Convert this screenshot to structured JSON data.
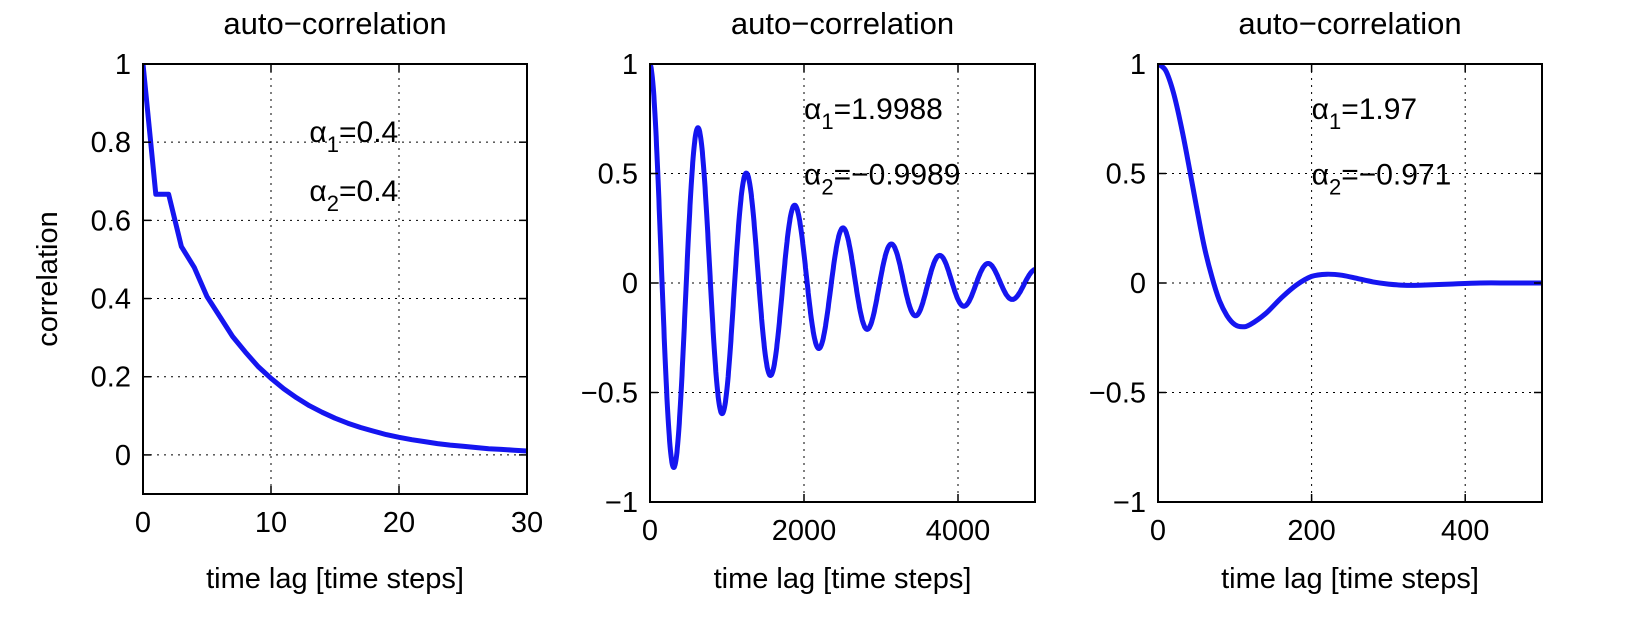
{
  "chart_data": [
    {
      "type": "line",
      "title": "auto−correlation",
      "xlabel": "time lag [time steps]",
      "ylabel": "correlation",
      "xlim": [
        0,
        30
      ],
      "ylim": [
        -0.1,
        1
      ],
      "xticks": [
        0,
        10,
        20,
        30
      ],
      "xtick_labels": [
        "0",
        "10",
        "20",
        "30"
      ],
      "yticks": [
        0,
        0.2,
        0.4,
        0.6,
        0.8,
        1
      ],
      "ytick_labels": [
        "0",
        "0.2",
        "0.4",
        "0.6",
        "0.8",
        "1"
      ],
      "grid": true,
      "color": "#1515f0",
      "annotations": [
        {
          "symbol": "α",
          "sub": "1",
          "text": "=0.4",
          "x": 13,
          "y": 0.8
        },
        {
          "symbol": "α",
          "sub": "2",
          "text": "=0.4",
          "x": 13,
          "y": 0.65
        }
      ],
      "series": [
        {
          "x": [
            0,
            1,
            2,
            3,
            4,
            5,
            6,
            7,
            8,
            9,
            10,
            11,
            12,
            13,
            14,
            15,
            16,
            17,
            18,
            19,
            20,
            21,
            22,
            23,
            24,
            25,
            26,
            27,
            28,
            29,
            30
          ],
          "y": [
            1.0,
            0.667,
            0.667,
            0.533,
            0.48,
            0.405,
            0.354,
            0.303,
            0.263,
            0.226,
            0.196,
            0.169,
            0.146,
            0.126,
            0.109,
            0.094,
            0.081,
            0.07,
            0.061,
            0.052,
            0.045,
            0.039,
            0.034,
            0.029,
            0.025,
            0.022,
            0.019,
            0.016,
            0.014,
            0.012,
            0.01
          ]
        }
      ]
    },
    {
      "type": "line",
      "title": "auto−correlation",
      "xlabel": "time lag [time steps]",
      "ylabel": "",
      "xlim": [
        0,
        5000
      ],
      "ylim": [
        -1,
        1
      ],
      "xticks": [
        0,
        2000,
        4000
      ],
      "xtick_labels": [
        "0",
        "2000",
        "4000"
      ],
      "yticks": [
        -1,
        -0.5,
        0,
        0.5,
        1
      ],
      "ytick_labels": [
        "−1",
        "−0.5",
        "0",
        "0.5",
        "1"
      ],
      "grid": true,
      "color": "#1515f0",
      "annotations": [
        {
          "symbol": "α",
          "sub": "1",
          "text": "=1.9988",
          "x": 2000,
          "y": 0.75
        },
        {
          "symbol": "α",
          "sub": "2",
          "text": "=−0.9989",
          "x": 2000,
          "y": 0.45
        }
      ],
      "curve": {
        "kind": "damped-cosine",
        "period": 628,
        "decay": 0.00055
      },
      "series": [
        {
          "x": [
            0,
            314,
            628,
            942,
            1256,
            1570,
            1884,
            2198,
            2512,
            2826,
            3140,
            3454,
            3768,
            4082,
            4396,
            4710,
            5000
          ],
          "y": [
            1.0,
            -0.84,
            0.71,
            -0.6,
            0.5,
            -0.42,
            0.35,
            -0.3,
            0.25,
            -0.21,
            0.18,
            -0.15,
            0.13,
            -0.11,
            0.09,
            -0.075,
            0.06
          ]
        }
      ]
    },
    {
      "type": "line",
      "title": "auto−correlation",
      "xlabel": "time lag [time steps]",
      "ylabel": "",
      "xlim": [
        0,
        500
      ],
      "ylim": [
        -1,
        1
      ],
      "xticks": [
        0,
        200,
        400
      ],
      "xtick_labels": [
        "0",
        "200",
        "400"
      ],
      "yticks": [
        -1,
        -0.5,
        0,
        0.5,
        1
      ],
      "ytick_labels": [
        "−1",
        "−0.5",
        "0",
        "0.5",
        "1"
      ],
      "grid": true,
      "color": "#1515f0",
      "annotations": [
        {
          "symbol": "α",
          "sub": "1",
          "text": "=1.97",
          "x": 200,
          "y": 0.75
        },
        {
          "symbol": "α",
          "sub": "2",
          "text": "=−0.971",
          "x": 200,
          "y": 0.45
        }
      ],
      "series": [
        {
          "x": [
            0,
            10,
            20,
            30,
            40,
            50,
            60,
            70,
            80,
            90,
            100,
            110,
            120,
            140,
            160,
            180,
            200,
            220,
            240,
            260,
            280,
            300,
            320,
            340,
            380,
            420,
            460,
            500
          ],
          "y": [
            1.0,
            0.97,
            0.87,
            0.72,
            0.54,
            0.35,
            0.17,
            0.03,
            -0.08,
            -0.15,
            -0.19,
            -0.2,
            -0.19,
            -0.14,
            -0.07,
            -0.01,
            0.03,
            0.04,
            0.035,
            0.02,
            0.005,
            -0.005,
            -0.01,
            -0.01,
            -0.005,
            0.0,
            0.0,
            0.0
          ]
        }
      ]
    }
  ]
}
